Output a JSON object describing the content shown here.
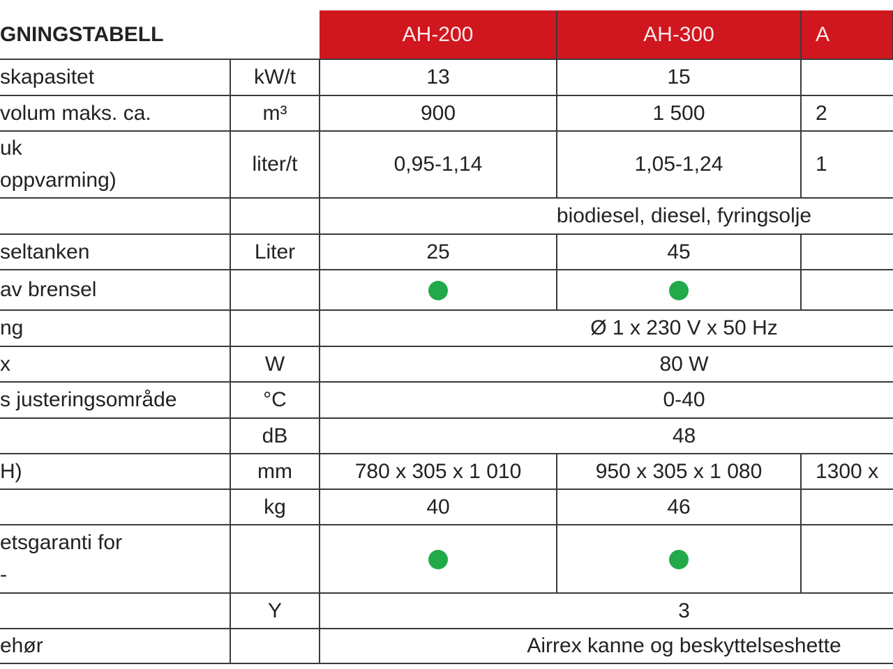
{
  "title": "GNINGSTABELL",
  "models": [
    "AH-200",
    "AH-300",
    "A"
  ],
  "colors": {
    "header_bg": "#d0161e",
    "dot": "#22a94a"
  },
  "rows": [
    {
      "label": "skapasitet",
      "unit": "kW/t",
      "cells": [
        "13",
        "15",
        ""
      ]
    },
    {
      "label": "volum maks. ca.",
      "unit": "m³",
      "cells": [
        "900",
        "1 500",
        "2"
      ]
    },
    {
      "label": "uk\n oppvarming)",
      "unit": "liter/t",
      "cells": [
        "0,95-1,14",
        "1,05-1,24",
        "1"
      ],
      "tall": true
    },
    {
      "label": "",
      "unit": "",
      "span": "biodiesel, diesel, fyringsolje"
    },
    {
      "label": "seltanken",
      "unit": "Liter",
      "cells": [
        "25",
        "45",
        ""
      ]
    },
    {
      "label": "av brensel",
      "unit": "",
      "cells": [
        "dot",
        "dot",
        ""
      ]
    },
    {
      "label": "ng",
      "unit": "",
      "span": "Ø 1 x 230 V x 50 Hz"
    },
    {
      "label": "x",
      "unit": "W",
      "span": "80 W"
    },
    {
      "label": "s justeringsområde",
      "unit": "°C",
      "span": "0-40"
    },
    {
      "label": "",
      "unit": "dB",
      "span": "48"
    },
    {
      "label": "H)",
      "unit": "mm",
      "cells": [
        "780 x 305 x 1 010",
        "950 x 305 x 1 080",
        "1300 x"
      ]
    },
    {
      "label": "",
      "unit": "kg",
      "cells": [
        "40",
        "46",
        ""
      ]
    },
    {
      "label": "etsgaranti for\n-",
      "unit": "",
      "cells": [
        "dot",
        "dot",
        ""
      ],
      "tall": true
    },
    {
      "label": "",
      "unit": "Y",
      "span": "3"
    },
    {
      "label": "ehør",
      "unit": "",
      "span": "Airrex kanne og beskyttelseshette"
    }
  ]
}
